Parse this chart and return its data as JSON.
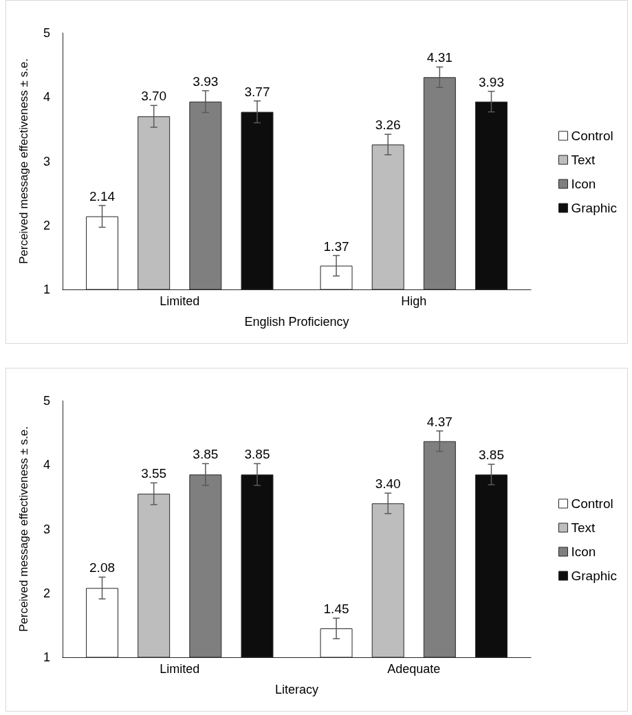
{
  "chart_data": [
    {
      "type": "bar",
      "xlabel": "English Proficiency",
      "ylabel": "Perceived message effectiveness ± s.e.",
      "categories": [
        "Limited",
        "High"
      ],
      "ylim": [
        1,
        5
      ],
      "yticks": [
        1,
        2,
        3,
        4,
        5
      ],
      "grid": false,
      "legend": "right",
      "series": [
        {
          "name": "Control",
          "color": "#ffffff",
          "values": [
            2.14,
            1.37
          ],
          "errors": [
            0.17,
            0.16
          ],
          "value_labels": [
            "2.14",
            "1.37"
          ]
        },
        {
          "name": "Text",
          "color": "#bdbdbd",
          "values": [
            3.7,
            3.26
          ],
          "errors": [
            0.17,
            0.16
          ],
          "value_labels": [
            "3.70",
            "3.26"
          ]
        },
        {
          "name": "Icon",
          "color": "#7f7f7f",
          "values": [
            3.93,
            4.31
          ],
          "errors": [
            0.17,
            0.16
          ],
          "value_labels": [
            "3.93",
            "4.31"
          ]
        },
        {
          "name": "Graphic",
          "color": "#0d0d0d",
          "values": [
            3.77,
            3.93
          ],
          "errors": [
            0.17,
            0.16
          ],
          "value_labels": [
            "3.77",
            "3.93"
          ]
        }
      ]
    },
    {
      "type": "bar",
      "xlabel": "Literacy",
      "ylabel": "Perceived message effectiveness ± s.e.",
      "categories": [
        "Limited",
        "Adequate"
      ],
      "ylim": [
        1,
        5
      ],
      "yticks": [
        1,
        2,
        3,
        4,
        5
      ],
      "grid": false,
      "legend": "right",
      "series": [
        {
          "name": "Control",
          "color": "#ffffff",
          "values": [
            2.08,
            1.45
          ],
          "errors": [
            0.17,
            0.16
          ],
          "value_labels": [
            "2.08",
            "1.45"
          ]
        },
        {
          "name": "Text",
          "color": "#bdbdbd",
          "values": [
            3.55,
            3.4
          ],
          "errors": [
            0.17,
            0.16
          ],
          "value_labels": [
            "3.55",
            "3.40"
          ]
        },
        {
          "name": "Icon",
          "color": "#7f7f7f",
          "values": [
            3.85,
            4.37
          ],
          "errors": [
            0.17,
            0.16
          ],
          "value_labels": [
            "3.85",
            "4.37"
          ]
        },
        {
          "name": "Graphic",
          "color": "#0d0d0d",
          "values": [
            3.85,
            3.85
          ],
          "errors": [
            0.17,
            0.16
          ],
          "value_labels": [
            "3.85",
            "3.85"
          ]
        }
      ]
    }
  ]
}
